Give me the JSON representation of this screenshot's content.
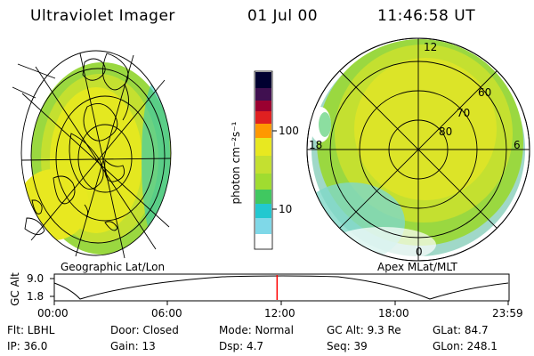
{
  "header": {
    "instrument": "Ultraviolet Imager",
    "date": "01 Jul 00",
    "time": "11:46:58 UT"
  },
  "left_panel": {
    "caption": "Geographic Lat/Lon"
  },
  "right_panel": {
    "caption": "Apex MLat/MLT",
    "mlt_labels": [
      "12",
      "18",
      "6",
      "0"
    ],
    "mlat_labels": [
      "60",
      "70",
      "80"
    ]
  },
  "colorbar": {
    "unit_label": "photon cm⁻²s⁻¹",
    "ticks": [
      "100",
      "10"
    ],
    "scale": "log",
    "colors": [
      "#ffffff",
      "#7fd8e8",
      "#22c8d0",
      "#40c860",
      "#a0dc30",
      "#e8e820",
      "#ff9800",
      "#e02020",
      "#9a0030",
      "#401050",
      "#000030"
    ]
  },
  "altitude_plot": {
    "ylabel": "GC Alt",
    "y_ticks": [
      "9.0",
      "1.8"
    ],
    "x_ticks": [
      "00:00",
      "06:00",
      "12:00",
      "18:00",
      "23:59"
    ],
    "current_time_hours": 11.78,
    "marker_color": "#ff0000"
  },
  "status": {
    "filter": "Flt: LBHL",
    "ip": "IP: 36.0",
    "door": "Door: Closed",
    "gain": "Gain: 13",
    "mode": "Mode: Normal",
    "dsp": "Dsp:    4.7",
    "gc_alt": "GC Alt: 9.3 Re",
    "seq": "Seq: 39",
    "glat": "GLat:  84.7",
    "glon": "GLon: 248.1"
  }
}
